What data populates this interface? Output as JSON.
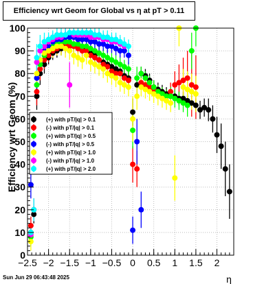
{
  "title": "Efficiency wrt Geom for Global vs   η  at pT > 0.11",
  "datestamp": "Sun Jun 29 06:43:48 2025",
  "chart_data": {
    "type": "scatter",
    "title": "Efficiency wrt Geom for Global vs   η  at pT > 0.11",
    "xlabel": "η",
    "ylabel": "Efficiency wrt Geom (%)",
    "xlim": [
      -2.5,
      2.4
    ],
    "ylim": [
      0,
      100
    ],
    "x_ticks": [
      -2.5,
      -2,
      -1.5,
      -1,
      -0.5,
      0,
      0.5,
      1,
      1.5,
      2
    ],
    "x_tick_labels": [
      "−2.5",
      "−2",
      "−1.5",
      "−1",
      "−0.5",
      "0",
      "0.5",
      "1",
      "1.5",
      "2"
    ],
    "y_ticks": [
      0,
      10,
      20,
      30,
      40,
      50,
      60,
      70,
      80,
      90,
      100
    ],
    "grid": true,
    "legend_position": "left-middle",
    "series": [
      {
        "name": "(+) with pT/|q| > 0.1",
        "color": "#000000",
        "x": [
          -2.42,
          -2.35,
          -2.28,
          -2.2,
          -2.1,
          -2.0,
          -1.9,
          -1.8,
          -1.7,
          -1.6,
          -1.5,
          -1.4,
          -1.3,
          -1.2,
          -1.1,
          -1.0,
          -0.9,
          -0.8,
          -0.7,
          -0.6,
          -0.5,
          -0.4,
          -0.3,
          -0.2,
          -0.1,
          0.0,
          0.1,
          0.2,
          0.3,
          0.4,
          0.5,
          0.6,
          0.7,
          0.8,
          0.9,
          1.0,
          1.1,
          1.2,
          1.3,
          1.4,
          1.5,
          1.6,
          1.7,
          1.8,
          1.9,
          2.0,
          2.1,
          2.2,
          2.3
        ],
        "y": [
          10,
          18,
          70,
          80,
          84,
          87,
          89,
          90,
          91,
          92,
          92,
          92,
          92,
          91,
          90,
          89,
          88,
          86,
          85,
          84,
          83,
          82,
          81,
          79,
          78,
          63,
          75,
          80,
          79,
          77,
          74,
          73,
          72,
          71,
          70,
          70,
          69,
          69,
          68,
          67,
          66,
          64,
          65,
          64,
          60,
          53,
          48,
          38,
          28
        ],
        "err": [
          4,
          4,
          6,
          5,
          4,
          3,
          3,
          3,
          3,
          3,
          3,
          3,
          3,
          3,
          3,
          3,
          3,
          3,
          3,
          3,
          3,
          3,
          3,
          3,
          3,
          6,
          5,
          3,
          3,
          3,
          3,
          3,
          3,
          3,
          3,
          3,
          3,
          3,
          3,
          3,
          3,
          4,
          4,
          5,
          6,
          8,
          10,
          12,
          12
        ]
      },
      {
        "name": "(-) with pT/|q| > 0.1",
        "color": "#ff0000",
        "x": [
          -2.42,
          -2.35,
          -2.28,
          -2.2,
          -2.1,
          -2.0,
          -1.9,
          -1.8,
          -1.7,
          -1.6,
          -1.5,
          -1.4,
          -1.3,
          -1.2,
          -1.1,
          -1.0,
          -0.9,
          -0.8,
          -0.7,
          -0.6,
          -0.5,
          -0.4,
          -0.3,
          -0.2,
          -0.1,
          0.0,
          0.1,
          0.2,
          0.3,
          0.4,
          0.5,
          0.6,
          0.7,
          0.8,
          0.9,
          1.0,
          1.1,
          1.2,
          1.3,
          1.4,
          1.5
        ],
        "y": [
          13,
          20,
          72,
          82,
          86,
          88,
          90,
          91,
          92,
          93,
          92,
          92,
          91,
          90,
          90,
          88,
          87,
          86,
          84,
          83,
          81,
          80,
          80,
          78,
          77,
          40,
          38,
          76,
          75,
          74,
          73,
          72,
          71,
          70,
          72,
          75,
          76,
          77,
          78,
          75,
          74
        ],
        "err": [
          4,
          4,
          6,
          5,
          4,
          3,
          3,
          3,
          3,
          3,
          3,
          3,
          3,
          3,
          3,
          3,
          3,
          3,
          3,
          3,
          3,
          3,
          3,
          3,
          3,
          8,
          8,
          3,
          3,
          3,
          3,
          3,
          3,
          3,
          4,
          6,
          8,
          10,
          12,
          14,
          14
        ]
      },
      {
        "name": "(+) with pT/|q| > 0.5",
        "color": "#00ff00",
        "x": [
          -2.42,
          -2.35,
          -2.28,
          -2.2,
          -2.1,
          -2.0,
          -1.9,
          -1.8,
          -1.7,
          -1.6,
          -1.5,
          -1.4,
          -1.3,
          -1.2,
          -1.1,
          -1.0,
          -0.9,
          -0.8,
          -0.7,
          -0.6,
          -0.5,
          -0.4,
          -0.3,
          -0.2,
          -0.1,
          0.0,
          0.1,
          0.2,
          0.3,
          0.4,
          0.5,
          0.6,
          0.7,
          0.8,
          0.9,
          1.0,
          1.1,
          1.2,
          1.3,
          1.4,
          1.5
        ],
        "y": [
          8,
          20,
          75,
          84,
          88,
          90,
          92,
          93,
          94,
          94,
          94,
          93,
          93,
          92,
          92,
          91,
          90,
          89,
          88,
          87,
          86,
          85,
          84,
          83,
          82,
          55,
          78,
          80,
          78,
          76,
          74,
          72,
          71,
          70,
          70,
          69,
          68,
          67,
          66,
          90,
          100
        ],
        "err": [
          4,
          5,
          6,
          5,
          4,
          3,
          3,
          3,
          3,
          3,
          3,
          3,
          3,
          3,
          3,
          3,
          3,
          3,
          3,
          3,
          3,
          3,
          3,
          3,
          3,
          8,
          5,
          3,
          3,
          3,
          3,
          3,
          3,
          3,
          4,
          4,
          4,
          4,
          5,
          8,
          8
        ]
      },
      {
        "name": "(-) with pT/|q| > 0.5",
        "color": "#0000ff",
        "x": [
          -2.42,
          -2.35,
          -2.28,
          -2.2,
          -2.1,
          -2.0,
          -1.9,
          -1.8,
          -1.7,
          -1.6,
          -1.5,
          -1.4,
          -1.3,
          -1.2,
          -1.1,
          -1.0,
          -0.9,
          -0.8,
          -0.7,
          -0.6,
          -0.5,
          -0.4,
          -0.3,
          -0.2,
          -0.1,
          0.0,
          0.1,
          0.2
        ],
        "y": [
          31,
          20,
          78,
          86,
          90,
          92,
          94,
          95,
          95,
          96,
          96,
          96,
          95,
          95,
          95,
          94,
          94,
          93,
          93,
          92,
          92,
          91,
          90,
          90,
          88,
          11,
          50,
          20
        ],
        "err": [
          6,
          5,
          6,
          5,
          4,
          3,
          3,
          3,
          3,
          3,
          3,
          3,
          3,
          3,
          3,
          3,
          3,
          3,
          3,
          3,
          3,
          3,
          3,
          3,
          4,
          6,
          10,
          8
        ]
      },
      {
        "name": "(+) with pT/|q| > 1.0",
        "color": "#ffff00",
        "x": [
          -2.42,
          -2.35,
          -2.28,
          -2.2,
          -2.1,
          -2.0,
          -1.9,
          -1.8,
          -1.7,
          -1.6,
          -1.5,
          -1.4,
          -1.3,
          -1.2,
          -1.1,
          -1.0,
          -0.9,
          -0.8,
          -0.7,
          -0.6,
          -0.5,
          -0.4,
          -0.3,
          -0.2,
          -0.1,
          0.0,
          0.1,
          0.2,
          0.3,
          0.4,
          0.5,
          0.6,
          0.7,
          0.8,
          0.9,
          1.0,
          1.1,
          1.2,
          1.3,
          1.4,
          1.5
        ],
        "y": [
          6,
          20,
          80,
          86,
          89,
          90,
          91,
          92,
          92,
          91,
          90,
          88,
          87,
          86,
          88,
          85,
          84,
          83,
          82,
          80,
          79,
          78,
          76,
          75,
          74,
          60,
          70,
          74,
          73,
          72,
          71,
          70,
          69,
          68,
          67,
          34,
          100,
          74,
          73,
          72,
          71
        ],
        "err": [
          4,
          5,
          6,
          5,
          4,
          4,
          4,
          4,
          4,
          4,
          4,
          4,
          4,
          4,
          4,
          4,
          4,
          4,
          4,
          4,
          4,
          4,
          4,
          4,
          4,
          10,
          6,
          4,
          4,
          4,
          4,
          4,
          4,
          4,
          4,
          10,
          8,
          8,
          8,
          8,
          8
        ]
      },
      {
        "name": "(-) with pT/|q| > 1.0",
        "color": "#ff00ff",
        "x": [
          -2.42,
          -2.35,
          -2.28,
          -2.2,
          -2.1,
          -2.0,
          -1.9,
          -1.8,
          -1.7,
          -1.6,
          -1.5,
          -1.4,
          -1.3,
          -1.2,
          -1.1,
          -1.0,
          -0.9,
          -0.8,
          -0.7,
          -0.6,
          -0.5,
          -0.4,
          -0.3,
          -0.2
        ],
        "y": [
          9,
          20,
          85,
          90,
          92,
          94,
          95,
          96,
          96,
          97,
          75,
          97,
          97,
          97,
          97,
          96,
          96,
          96,
          95,
          95,
          94,
          94,
          93,
          92
        ],
        "err": [
          4,
          5,
          6,
          5,
          4,
          3,
          3,
          3,
          3,
          3,
          10,
          3,
          3,
          3,
          3,
          3,
          3,
          3,
          3,
          3,
          3,
          3,
          3,
          3
        ]
      },
      {
        "name": "(+) with pT/|q| > 2.0",
        "color": "#00ffff",
        "x": [
          -2.42,
          -2.35,
          -2.28,
          -2.2,
          -2.1,
          -2.0,
          -1.9,
          -1.8,
          -1.7,
          -1.6,
          -1.5,
          -1.4,
          -1.3,
          -1.2,
          -1.1,
          -1.0,
          -0.9,
          -0.8,
          -0.7,
          -0.6,
          -0.5,
          -0.4,
          -0.3,
          -0.2,
          -0.1
        ],
        "y": [
          10,
          20,
          87,
          92,
          94,
          95,
          96,
          97,
          97,
          97,
          98,
          98,
          98,
          98,
          98,
          98,
          97,
          97,
          96,
          96,
          95,
          95,
          94,
          93,
          92
        ],
        "err": [
          4,
          5,
          6,
          5,
          4,
          3,
          3,
          3,
          3,
          3,
          3,
          3,
          3,
          3,
          3,
          3,
          3,
          3,
          3,
          3,
          3,
          3,
          3,
          3,
          3
        ]
      }
    ]
  }
}
